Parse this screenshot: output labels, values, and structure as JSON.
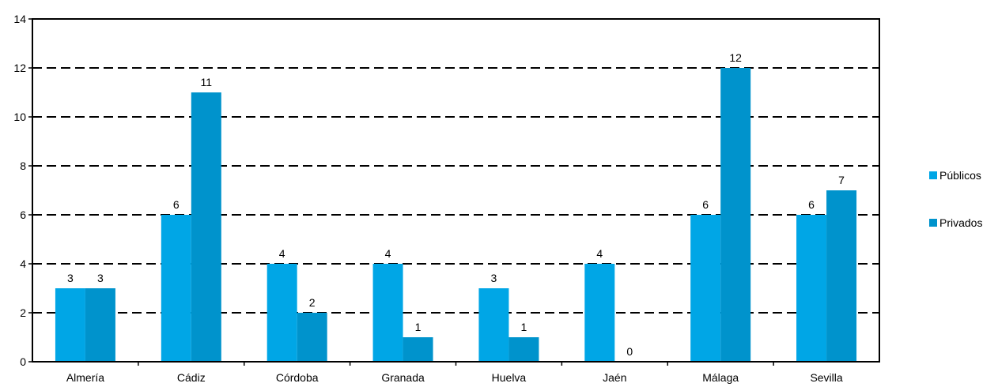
{
  "chart_data": {
    "type": "bar",
    "title": "",
    "xlabel": "",
    "ylabel": "",
    "categories": [
      "Almería",
      "Cádiz",
      "Córdoba",
      "Granada",
      "Huelva",
      "Jaén",
      "Málaga",
      "Sevilla"
    ],
    "series": [
      {
        "name": "Públicos",
        "color": "#00a6e6",
        "values": [
          3,
          6,
          4,
          4,
          3,
          4,
          6,
          6
        ]
      },
      {
        "name": "Privados",
        "color": "#0093cc",
        "values": [
          3,
          11,
          2,
          1,
          1,
          0,
          12,
          7
        ]
      }
    ],
    "ylim": [
      0,
      14
    ],
    "yticks": [
      "0",
      "2",
      "4",
      "6",
      "8",
      "10",
      "12",
      "14"
    ],
    "grid": "dashed horizontal",
    "legend_position": "right"
  }
}
